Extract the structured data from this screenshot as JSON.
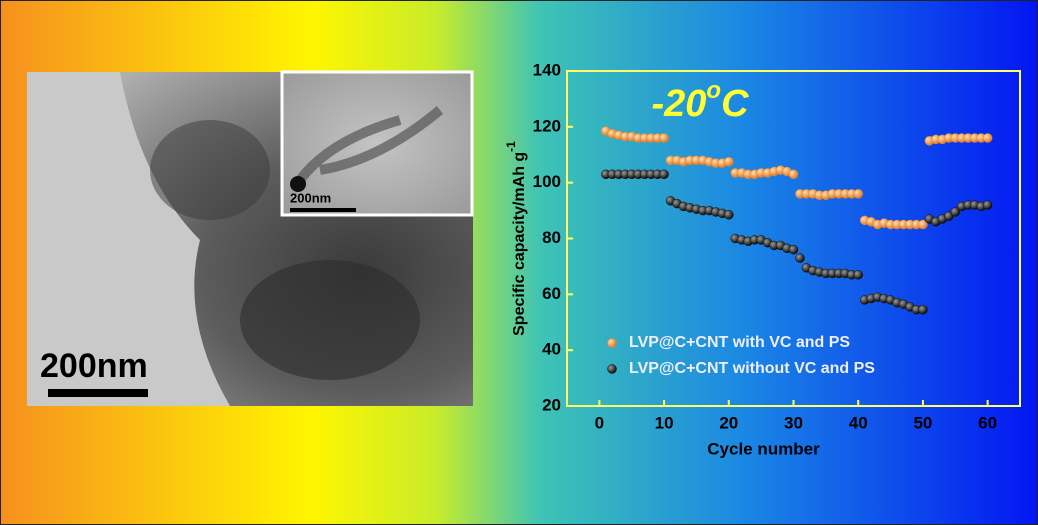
{
  "image": {
    "scale_bar": "200nm",
    "inset_scale_bar": "200nm"
  },
  "chart_data": {
    "type": "scatter",
    "title": "-20",
    "title_superscript": "o",
    "title_suffix": "C",
    "xlabel": "Cycle number",
    "ylabel": "Specific capacity/mAh g",
    "ylabel_superscript": "-1",
    "xlim": [
      -5,
      65
    ],
    "ylim": [
      20,
      140
    ],
    "xticks": [
      0,
      10,
      20,
      30,
      40,
      50,
      60
    ],
    "yticks": [
      20,
      40,
      60,
      80,
      100,
      120,
      140
    ],
    "legend": "lower left",
    "x": [
      1,
      2,
      3,
      4,
      5,
      6,
      7,
      8,
      9,
      10,
      11,
      12,
      13,
      14,
      15,
      16,
      17,
      18,
      19,
      20,
      21,
      22,
      23,
      24,
      25,
      26,
      27,
      28,
      29,
      30,
      31,
      32,
      33,
      34,
      35,
      36,
      37,
      38,
      39,
      40,
      41,
      42,
      43,
      44,
      45,
      46,
      47,
      48,
      49,
      50,
      51,
      52,
      53,
      54,
      55,
      56,
      57,
      58,
      59,
      60
    ],
    "series": [
      {
        "name": "LVP@C+CNT with VC and PS",
        "color": "#f08a2c",
        "values": [
          118.5,
          117.5,
          117,
          116.5,
          116.5,
          116,
          116,
          116,
          116,
          116,
          108,
          108,
          107.5,
          108,
          108,
          108,
          107.5,
          107,
          107,
          107.5,
          103.5,
          103.5,
          103,
          103,
          103.5,
          103.5,
          104,
          104.5,
          104,
          103,
          96,
          96,
          96,
          95.5,
          95.5,
          96,
          96,
          96,
          96,
          96,
          86.5,
          86,
          85,
          85.5,
          85,
          85,
          85,
          85,
          85,
          85,
          115,
          115.5,
          115.5,
          116,
          116,
          116,
          116,
          116,
          116,
          116
        ]
      },
      {
        "name": "LVP@C+CNT without VC and PS",
        "color": "#111111",
        "values": [
          103,
          103,
          103,
          103,
          103,
          103,
          103,
          103,
          103,
          103,
          93.5,
          92.5,
          91.5,
          91,
          90.5,
          90,
          90,
          89.5,
          89,
          88.5,
          80,
          79.5,
          79,
          79.5,
          79.5,
          78.5,
          77.5,
          77.5,
          76.5,
          76,
          73,
          69.5,
          68.5,
          68,
          67.5,
          67.5,
          67.5,
          67.5,
          67,
          67,
          58,
          58.5,
          59,
          58.5,
          58,
          57,
          56.5,
          55.5,
          54.5,
          54.5,
          87,
          86,
          87,
          88,
          89.5,
          91.5,
          92,
          92,
          91.5,
          92
        ]
      }
    ]
  }
}
